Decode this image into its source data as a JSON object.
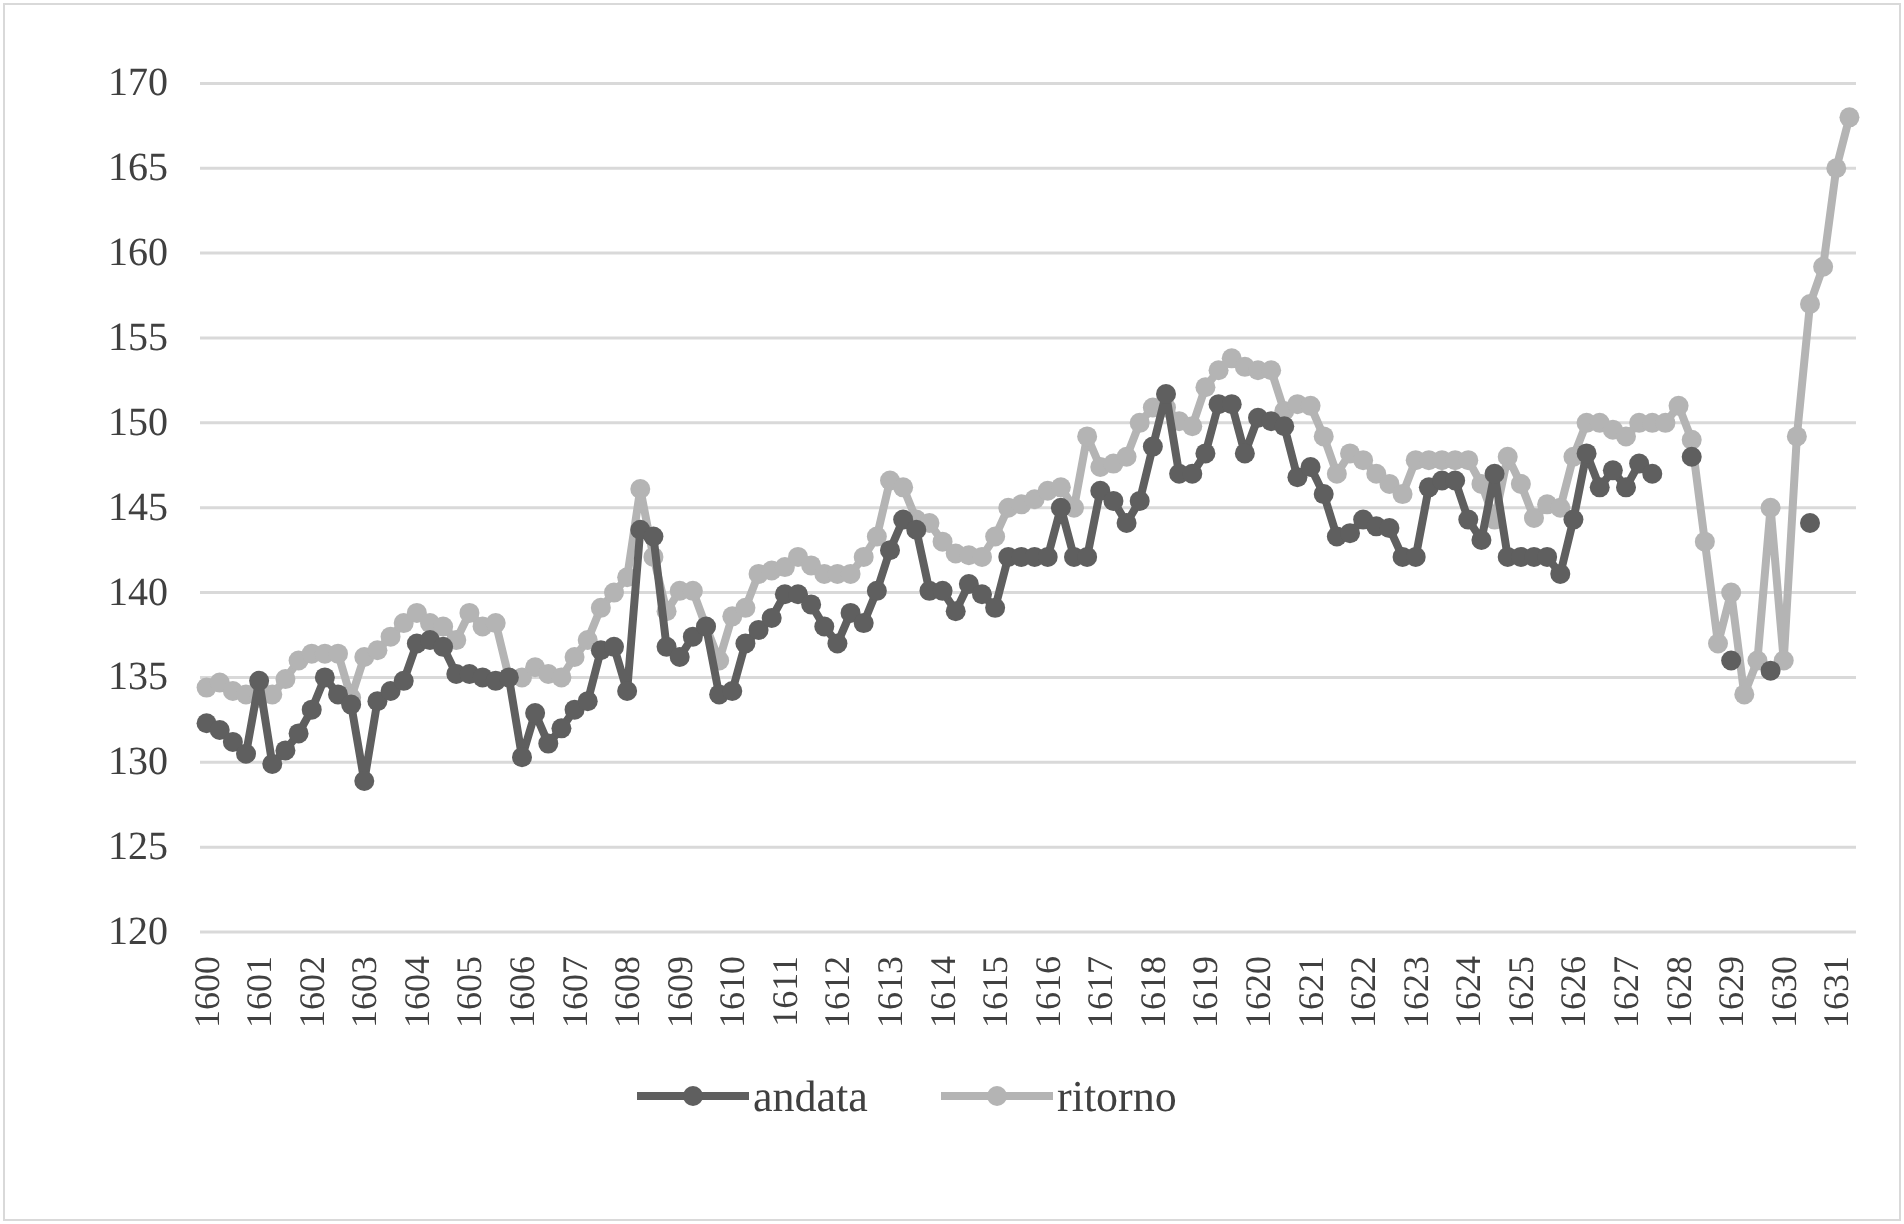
{
  "chart_data": {
    "type": "line",
    "categories": [
      "1600",
      null,
      null,
      null,
      "1601",
      null,
      null,
      null,
      "1602",
      null,
      null,
      null,
      "1603",
      null,
      null,
      null,
      "1604",
      null,
      null,
      null,
      "1605",
      null,
      null,
      null,
      "1606",
      null,
      null,
      null,
      "1607",
      null,
      null,
      null,
      "1608",
      null,
      null,
      null,
      "1609",
      null,
      null,
      null,
      "1610",
      null,
      null,
      null,
      "1611",
      null,
      null,
      null,
      "1612",
      null,
      null,
      null,
      "1613",
      null,
      null,
      null,
      "1614",
      null,
      null,
      null,
      "1615",
      null,
      null,
      null,
      "1616",
      null,
      null,
      null,
      "1617",
      null,
      null,
      null,
      "1618",
      null,
      null,
      null,
      "1619",
      null,
      null,
      null,
      "1620",
      null,
      null,
      null,
      "1621",
      null,
      null,
      null,
      "1622",
      null,
      null,
      null,
      "1623",
      null,
      null,
      null,
      "1624",
      null,
      null,
      null,
      "1625",
      null,
      null,
      null,
      "1626",
      null,
      null,
      null,
      "1627",
      null,
      null,
      null,
      "1628",
      null,
      null,
      null,
      "1629",
      null,
      null,
      null,
      "1630",
      null,
      null,
      null,
      "1631",
      null
    ],
    "series": [
      {
        "name": "andata",
        "color": "#5f5f5f",
        "values": [
          132.3,
          131.9,
          131.2,
          130.5,
          134.8,
          129.9,
          130.7,
          131.7,
          133.1,
          135.0,
          134.0,
          133.4,
          128.9,
          133.6,
          134.2,
          134.8,
          137.0,
          137.2,
          136.8,
          135.2,
          135.2,
          135.0,
          134.8,
          135.0,
          130.3,
          132.9,
          131.1,
          132.0,
          133.1,
          133.6,
          136.6,
          136.8,
          134.2,
          143.7,
          143.3,
          136.8,
          136.2,
          137.4,
          138.0,
          134.0,
          134.2,
          137.0,
          137.8,
          138.5,
          139.9,
          139.9,
          139.3,
          138.0,
          137.0,
          138.8,
          138.2,
          140.1,
          142.5,
          144.3,
          143.7,
          140.1,
          140.1,
          138.9,
          140.5,
          139.9,
          139.1,
          142.1,
          142.1,
          142.1,
          142.1,
          145.0,
          142.1,
          142.1,
          146.0,
          145.4,
          144.1,
          145.4,
          148.6,
          151.7,
          147.0,
          147.0,
          148.2,
          151.1,
          151.1,
          148.2,
          150.3,
          150.1,
          149.8,
          146.8,
          147.4,
          145.8,
          143.3,
          143.5,
          144.3,
          143.9,
          143.8,
          142.1,
          142.1,
          146.2,
          146.6,
          146.6,
          144.3,
          143.1,
          147.0,
          142.1,
          142.1,
          142.1,
          142.1,
          141.1,
          144.3,
          148.2,
          146.2,
          147.2,
          146.2,
          147.6,
          147.0,
          null,
          null,
          148.0,
          null,
          null,
          136.0,
          null,
          null,
          135.4,
          null,
          null,
          144.1,
          null,
          null,
          null
        ]
      },
      {
        "name": "ritorno",
        "color": "#b4b4b4",
        "values": [
          134.4,
          134.7,
          134.2,
          134.0,
          133.8,
          134.0,
          134.9,
          136.0,
          136.4,
          136.4,
          136.4,
          133.8,
          136.2,
          136.6,
          137.4,
          138.2,
          138.8,
          138.2,
          138.0,
          137.2,
          138.8,
          138.0,
          138.2,
          135.0,
          135.0,
          135.6,
          135.2,
          135.0,
          136.2,
          137.2,
          139.1,
          140.0,
          140.9,
          146.1,
          142.1,
          138.9,
          140.1,
          140.1,
          138.0,
          136.0,
          138.6,
          139.1,
          141.1,
          141.3,
          141.5,
          142.1,
          141.6,
          141.1,
          141.1,
          141.1,
          142.1,
          143.3,
          146.6,
          146.2,
          144.3,
          144.1,
          143.0,
          142.3,
          142.2,
          142.1,
          143.3,
          145.0,
          145.2,
          145.5,
          146.0,
          146.2,
          145.0,
          149.2,
          147.4,
          147.6,
          148.0,
          150.0,
          150.9,
          150.9,
          150.1,
          149.8,
          152.1,
          153.1,
          153.8,
          153.3,
          153.1,
          153.1,
          150.7,
          151.1,
          151.0,
          149.2,
          147.0,
          148.2,
          147.8,
          147.0,
          146.4,
          145.8,
          147.8,
          147.8,
          147.8,
          147.8,
          147.8,
          146.4,
          144.3,
          148.0,
          146.4,
          144.4,
          145.2,
          145.0,
          148.0,
          150.0,
          150.0,
          149.6,
          149.2,
          150.0,
          150.0,
          150.0,
          151.0,
          149.0,
          143.0,
          137.0,
          140.0,
          134.0,
          136.0,
          145.0,
          136.0,
          149.2,
          157.0,
          159.2,
          165.0,
          168.0
        ]
      }
    ],
    "ylim": [
      120,
      170
    ],
    "yticks": [
      120,
      125,
      130,
      135,
      140,
      145,
      150,
      155,
      160,
      165,
      170
    ],
    "grid": "y",
    "legend": "bottom",
    "marker": "circle",
    "line_style": "solid"
  }
}
